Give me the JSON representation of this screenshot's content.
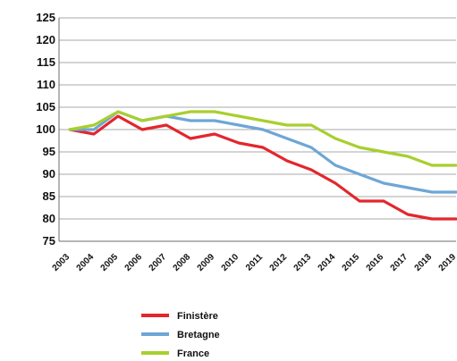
{
  "chart_data": {
    "type": "line",
    "x": [
      "2003",
      "2004",
      "2005",
      "2006",
      "2007",
      "2008",
      "2009",
      "2010",
      "2011",
      "2012",
      "2013",
      "2014",
      "2015",
      "2016",
      "2017",
      "2018",
      "2019"
    ],
    "series": [
      {
        "name": "Finistère",
        "color": "#e3262d",
        "values": [
          100,
          99,
          103,
          100,
          101,
          98,
          99,
          97,
          96,
          93,
          91,
          88,
          84,
          84,
          81,
          80,
          80
        ]
      },
      {
        "name": "Bretagne",
        "color": "#6ea6d6",
        "values": [
          100,
          100,
          104,
          102,
          103,
          102,
          102,
          101,
          100,
          98,
          96,
          92,
          90,
          88,
          87,
          86,
          86
        ]
      },
      {
        "name": "France",
        "color": "#a8cf2e",
        "values": [
          100,
          101,
          104,
          102,
          103,
          104,
          104,
          103,
          102,
          101,
          101,
          98,
          96,
          95,
          94,
          92,
          92
        ]
      }
    ],
    "y_ticks": [
      "125",
      "120",
      "115",
      "110",
      "105",
      "100",
      "95",
      "90",
      "85",
      "80",
      "75"
    ],
    "ylim": [
      75,
      125
    ],
    "grid": true,
    "legend_placement": "bottom-left"
  }
}
